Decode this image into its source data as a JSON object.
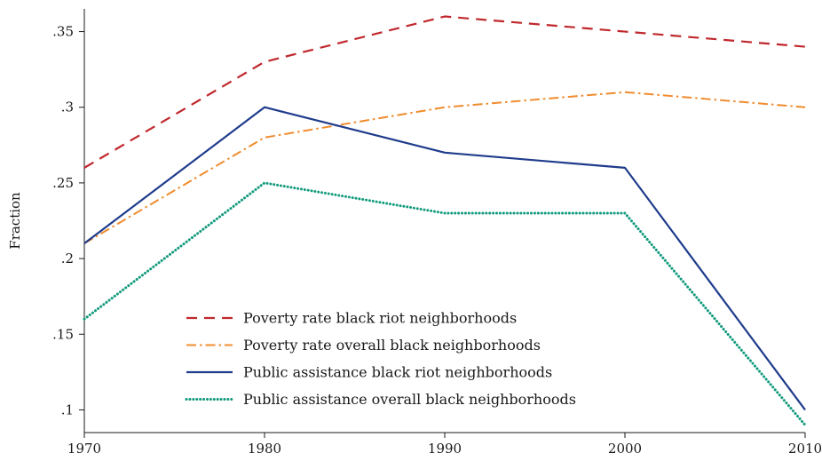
{
  "chart_data": {
    "type": "line",
    "title": "",
    "xlabel": "",
    "ylabel": "Fraction",
    "x": [
      1970,
      1980,
      1990,
      2000,
      2010
    ],
    "x_ticks": [
      "1970",
      "1980",
      "1990",
      "2000",
      "2010"
    ],
    "y_ticks": [
      ".1",
      ".15",
      ".2",
      ".25",
      ".3",
      ".35"
    ],
    "y_tick_values": [
      0.1,
      0.15,
      0.2,
      0.25,
      0.3,
      0.35
    ],
    "xlim": [
      1970,
      2010
    ],
    "ylim": [
      0.085,
      0.365
    ],
    "grid": false,
    "legend_position": "bottom-center",
    "series": [
      {
        "name": "Poverty rate black riot neighborhoods",
        "values": [
          0.26,
          0.33,
          0.36,
          0.35,
          0.34
        ],
        "color": "#c0282d",
        "style": "dashed"
      },
      {
        "name": "Poverty rate overall black neighborhoods",
        "values": [
          0.21,
          0.28,
          0.3,
          0.31,
          0.3
        ],
        "color": "#f08c2e",
        "style": "dash-dot"
      },
      {
        "name": "Public assistance black riot neighborhoods",
        "values": [
          0.21,
          0.3,
          0.27,
          0.26,
          0.1
        ],
        "color": "#1f3c8c",
        "style": "solid"
      },
      {
        "name": "Public assistance overall black neighborhoods",
        "values": [
          0.16,
          0.25,
          0.23,
          0.23,
          0.09
        ],
        "color": "#129a7c",
        "style": "dotted"
      }
    ]
  }
}
